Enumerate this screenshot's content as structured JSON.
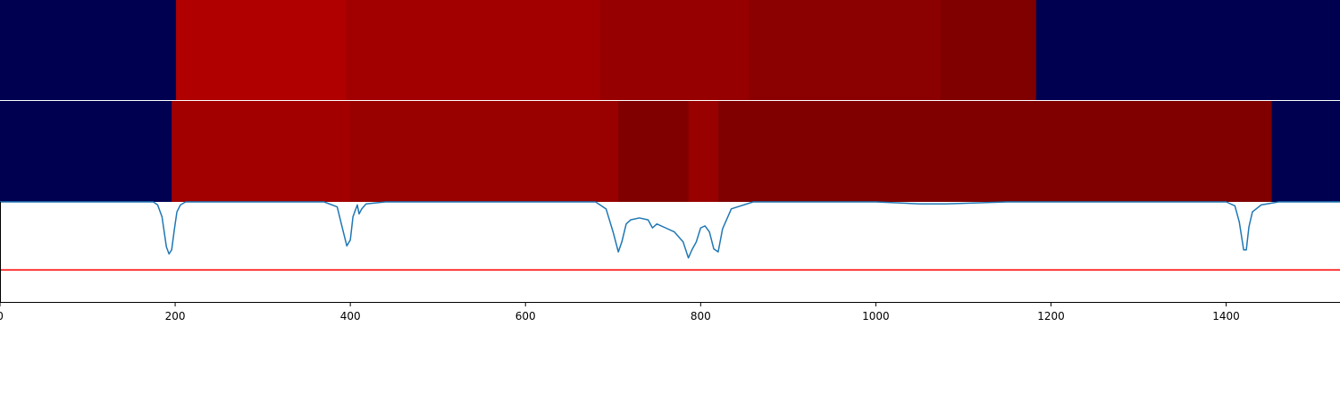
{
  "chart_data": {
    "type": "heatmap",
    "xlim": [
      0,
      1530
    ],
    "colors": {
      "background_segment": "#000050",
      "curve": "#1f77b4",
      "threshold_line": "#ff0000",
      "axis": "#000000",
      "separator": "#ffffff"
    },
    "x_ticks": [
      {
        "value": 0,
        "label": "0"
      },
      {
        "value": 200,
        "label": "200"
      },
      {
        "value": 400,
        "label": "400"
      },
      {
        "value": 600,
        "label": "600"
      },
      {
        "value": 800,
        "label": "800"
      },
      {
        "value": 1000,
        "label": "1000"
      },
      {
        "value": 1200,
        "label": "1200"
      },
      {
        "value": 1400,
        "label": "1400"
      }
    ],
    "segment_rows": [
      {
        "segments": [
          {
            "start": 0,
            "end": 201,
            "color": "#000050"
          },
          {
            "start": 201,
            "end": 395,
            "color": "#b00000"
          },
          {
            "start": 395,
            "end": 685,
            "color": "#a20000"
          },
          {
            "start": 685,
            "end": 855,
            "color": "#970000"
          },
          {
            "start": 855,
            "end": 1074,
            "color": "#8b0000"
          },
          {
            "start": 1074,
            "end": 1183,
            "color": "#800000"
          },
          {
            "start": 1183,
            "end": 1530,
            "color": "#000050"
          }
        ]
      },
      {
        "segments": [
          {
            "start": 0,
            "end": 196,
            "color": "#000050"
          },
          {
            "start": 196,
            "end": 400,
            "color": "#a20000"
          },
          {
            "start": 400,
            "end": 706,
            "color": "#990000"
          },
          {
            "start": 706,
            "end": 786,
            "color": "#800000"
          },
          {
            "start": 786,
            "end": 820,
            "color": "#990000"
          },
          {
            "start": 820,
            "end": 1452,
            "color": "#800000"
          },
          {
            "start": 1452,
            "end": 1530,
            "color": "#000050"
          }
        ]
      }
    ],
    "signal_panel": {
      "ylim": [
        0,
        1
      ],
      "threshold": 0.32,
      "x": [
        0,
        150,
        175,
        180,
        185,
        190,
        193,
        196,
        199,
        202,
        206,
        212,
        225,
        300,
        370,
        385,
        392,
        396,
        400,
        403,
        405,
        408,
        410,
        413,
        418,
        440,
        470,
        600,
        680,
        692,
        700,
        706,
        710,
        715,
        720,
        730,
        740,
        745,
        750,
        760,
        770,
        780,
        786,
        790,
        795,
        800,
        805,
        810,
        815,
        820,
        825,
        835,
        860,
        950,
        1000,
        1050,
        1080,
        1150,
        1300,
        1400,
        1410,
        1415,
        1420,
        1423,
        1426,
        1430,
        1440,
        1460,
        1530
      ],
      "y": [
        1,
        1,
        1,
        0.97,
        0.85,
        0.55,
        0.48,
        0.52,
        0.72,
        0.9,
        0.97,
        1,
        1,
        1,
        1,
        0.95,
        0.7,
        0.56,
        0.62,
        0.85,
        0.9,
        0.97,
        0.88,
        0.93,
        0.98,
        1,
        1,
        1,
        1,
        0.93,
        0.7,
        0.5,
        0.6,
        0.78,
        0.82,
        0.84,
        0.82,
        0.74,
        0.78,
        0.74,
        0.7,
        0.6,
        0.44,
        0.52,
        0.6,
        0.74,
        0.76,
        0.7,
        0.53,
        0.5,
        0.73,
        0.93,
        1,
        1,
        1,
        0.98,
        0.98,
        1,
        1,
        1,
        0.96,
        0.8,
        0.52,
        0.52,
        0.75,
        0.9,
        0.97,
        1,
        1
      ]
    }
  }
}
